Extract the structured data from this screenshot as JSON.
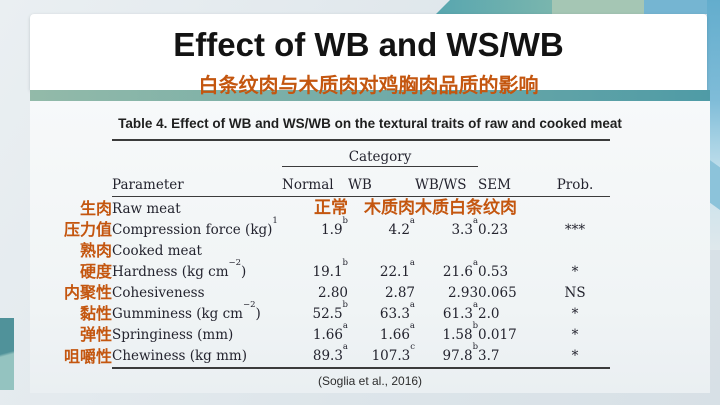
{
  "header": {
    "title": "Effect of WB and WS/WB",
    "subtitle_cn": "白条纹肉与木质肉对鸡胸肉品质的影响"
  },
  "table": {
    "caption": "Table 4. Effect of WB and WS/WB on the textural traits of raw and cooked meat",
    "category_label": "Category",
    "columns": [
      "Parameter",
      "Normal",
      "WB",
      "WB/WS",
      "SEM",
      "Prob."
    ],
    "rows": [
      {
        "cn": "生肉",
        "param": [
          {
            "t": "Raw meat"
          }
        ],
        "cells": [
          {
            "v": "正常",
            "orange": true
          },
          {
            "v": "木质肉",
            "orange": true
          },
          {
            "v": "木质白条纹肉",
            "orange": true,
            "wide": true
          },
          {
            "v": ""
          },
          {
            "v": ""
          }
        ]
      },
      {
        "cn": "压力值",
        "param": [
          {
            "t": "Compression force (kg)"
          },
          {
            "sup": "1"
          }
        ],
        "cells": [
          {
            "v": "1.9",
            "s": "b"
          },
          {
            "v": "4.2",
            "s": "a"
          },
          {
            "v": "3.3",
            "s": "a"
          },
          {
            "v": "0.23"
          },
          {
            "v": "***"
          }
        ]
      },
      {
        "cn": "熟肉",
        "param": [
          {
            "t": "Cooked meat"
          }
        ],
        "cells": [
          {
            "v": ""
          },
          {
            "v": ""
          },
          {
            "v": ""
          },
          {
            "v": ""
          },
          {
            "v": ""
          }
        ]
      },
      {
        "cn": "硬度",
        "param": [
          {
            "t": "Hardness (kg cm"
          },
          {
            "sup": "−2"
          },
          {
            "t": ")"
          }
        ],
        "cells": [
          {
            "v": "19.1",
            "s": "b"
          },
          {
            "v": "22.1",
            "s": "a"
          },
          {
            "v": "21.6",
            "s": "a"
          },
          {
            "v": "0.53"
          },
          {
            "v": "*"
          }
        ]
      },
      {
        "cn": "内聚性",
        "param": [
          {
            "t": "Cohesiveness"
          }
        ],
        "cells": [
          {
            "v": "2.80"
          },
          {
            "v": "2.87"
          },
          {
            "v": "2.93"
          },
          {
            "v": "0.065"
          },
          {
            "v": "NS"
          }
        ]
      },
      {
        "cn": "黏性",
        "param": [
          {
            "t": "Gumminess (kg cm"
          },
          {
            "sup": "−2"
          },
          {
            "t": ")"
          }
        ],
        "cells": [
          {
            "v": "52.5",
            "s": "b"
          },
          {
            "v": "63.3",
            "s": "a"
          },
          {
            "v": "61.3",
            "s": "a"
          },
          {
            "v": "2.0"
          },
          {
            "v": "*"
          }
        ]
      },
      {
        "cn": "弹性",
        "param": [
          {
            "t": "Springiness (mm)"
          }
        ],
        "cells": [
          {
            "v": "1.66",
            "s": "a"
          },
          {
            "v": "1.66",
            "s": "a"
          },
          {
            "v": "1.58",
            "s": "b"
          },
          {
            "v": "0.017"
          },
          {
            "v": "*"
          }
        ]
      },
      {
        "cn": "咀嚼性",
        "param": [
          {
            "t": "Chewiness (kg mm)"
          }
        ],
        "cells": [
          {
            "v": "89.3",
            "s": "a"
          },
          {
            "v": "107.3",
            "s": "c"
          },
          {
            "v": "97.8",
            "s": "b"
          },
          {
            "v": "3.7"
          },
          {
            "v": "*"
          }
        ]
      }
    ]
  },
  "footer": {
    "citation": "(Soglia et al., 2016)"
  },
  "colors": {
    "accent_orange": "#C4560F",
    "bar_teal": "#4F9BA6",
    "bar_sage": "#93BAA9",
    "frame_gray_blue": "#DDE5EA"
  }
}
